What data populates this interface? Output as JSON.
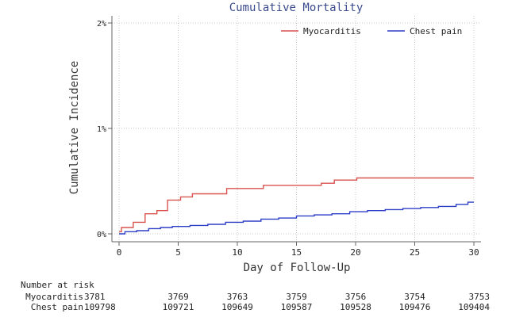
{
  "chart_data": {
    "type": "line",
    "title": "Cumulative Mortality",
    "xlabel": "Day of Follow-Up",
    "ylabel": "Cumulative Incidence",
    "xlim": [
      0,
      30
    ],
    "ylim": [
      0,
      2
    ],
    "x_ticks": [
      "0",
      "5",
      "10",
      "15",
      "20",
      "25",
      "30"
    ],
    "x_tick_values": [
      0,
      5,
      10,
      15,
      20,
      25,
      30
    ],
    "y_ticks": [
      "0%",
      "1%",
      "2%"
    ],
    "y_tick_values": [
      0,
      1,
      2
    ],
    "grid": true,
    "legend_position": "top-right",
    "series": [
      {
        "name": "Myocarditis",
        "color": "#d9534f",
        "step": true,
        "points": [
          [
            0,
            0.02
          ],
          [
            0.2,
            0.06
          ],
          [
            1.2,
            0.11
          ],
          [
            2.2,
            0.19
          ],
          [
            3.2,
            0.22
          ],
          [
            4.1,
            0.32
          ],
          [
            5.2,
            0.35
          ],
          [
            6.2,
            0.38
          ],
          [
            9.1,
            0.43
          ],
          [
            12.2,
            0.46
          ],
          [
            17.1,
            0.48
          ],
          [
            18.2,
            0.51
          ],
          [
            20.1,
            0.53
          ],
          [
            30,
            0.53
          ]
        ]
      },
      {
        "name": "Chest pain",
        "color": "#2e3fc7",
        "step": true,
        "points": [
          [
            0,
            0.0
          ],
          [
            0.5,
            0.02
          ],
          [
            1.5,
            0.03
          ],
          [
            2.5,
            0.05
          ],
          [
            3.5,
            0.06
          ],
          [
            4.5,
            0.07
          ],
          [
            6,
            0.08
          ],
          [
            7.5,
            0.09
          ],
          [
            9,
            0.11
          ],
          [
            10.5,
            0.12
          ],
          [
            12,
            0.14
          ],
          [
            13.5,
            0.15
          ],
          [
            15,
            0.17
          ],
          [
            16.5,
            0.18
          ],
          [
            18,
            0.19
          ],
          [
            19.5,
            0.21
          ],
          [
            21,
            0.22
          ],
          [
            22.5,
            0.23
          ],
          [
            24,
            0.24
          ],
          [
            25.5,
            0.25
          ],
          [
            27,
            0.26
          ],
          [
            28.5,
            0.28
          ],
          [
            29.5,
            0.3
          ],
          [
            30,
            0.3
          ]
        ]
      }
    ]
  },
  "risk_table": {
    "heading": "Number at risk",
    "rows": [
      {
        "label": "Myocarditis",
        "values": [
          "3781",
          "3769",
          "3763",
          "3759",
          "3756",
          "3754",
          "3753"
        ]
      },
      {
        "label": "Chest pain",
        "values": [
          "109798",
          "109721",
          "109649",
          "109587",
          "109528",
          "109476",
          "109404"
        ]
      }
    ]
  }
}
